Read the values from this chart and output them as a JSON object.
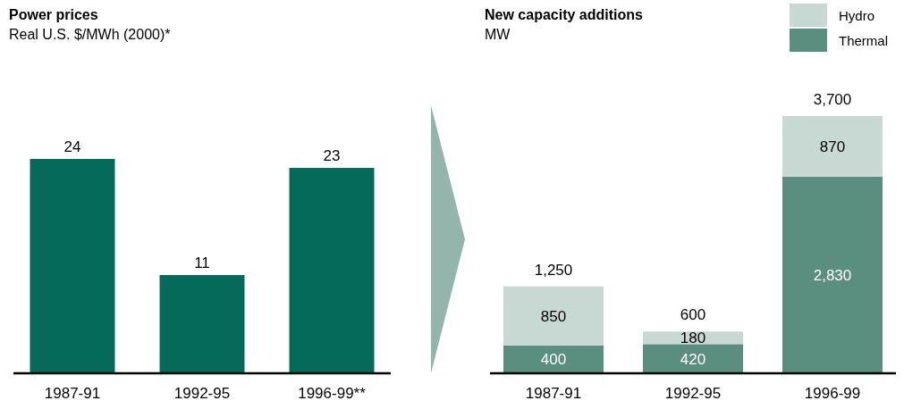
{
  "chart_data": [
    {
      "type": "bar",
      "title": "Power prices",
      "subtitle": "Real U.S. $/MWh (2000)*",
      "categories": [
        "1987-91",
        "1992-95",
        "1996-99**"
      ],
      "values": [
        24,
        11,
        23
      ],
      "color": "#066a5b",
      "data_labels": true
    },
    {
      "type": "bar",
      "title": "New capacity additions",
      "subtitle": "MW",
      "categories": [
        "1987-91",
        "1992-95",
        "1996-99"
      ],
      "stacked": true,
      "legend": "top right",
      "totals": [
        "1,250",
        "600",
        "3,700"
      ],
      "series": [
        {
          "name": "Thermal",
          "color": "#5a8f80",
          "values": [
            400,
            420,
            2830
          ],
          "value_labels": [
            "400",
            "420",
            "2,830"
          ]
        },
        {
          "name": "Hydro",
          "color": "#c8d8d2",
          "values": [
            850,
            180,
            870
          ],
          "value_labels": [
            "850",
            "180",
            "870"
          ]
        }
      ]
    }
  ]
}
